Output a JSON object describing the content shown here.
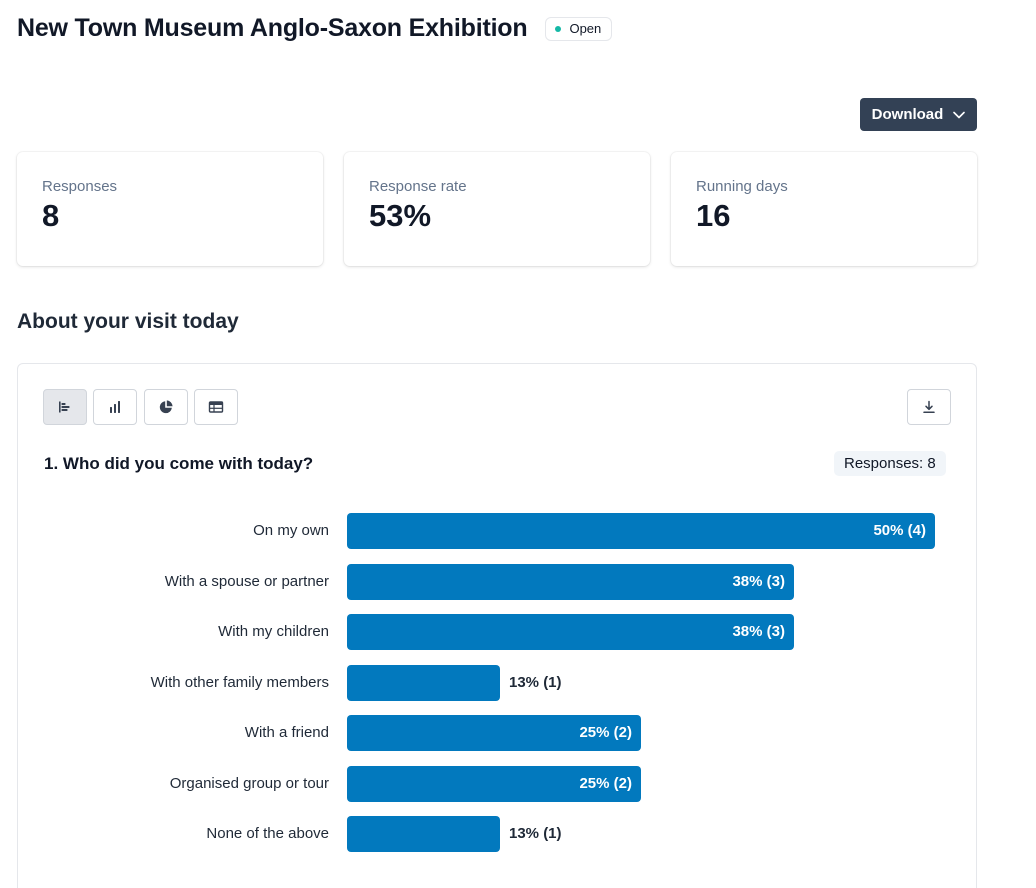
{
  "header": {
    "title": "New Town Museum Anglo-Saxon Exhibition",
    "status": "Open"
  },
  "toolbar": {
    "download_label": "Download"
  },
  "stats": [
    {
      "label": "Responses",
      "value": "8"
    },
    {
      "label": "Response rate",
      "value": "53%"
    },
    {
      "label": "Running days",
      "value": "16"
    }
  ],
  "section": {
    "title": "About your visit today"
  },
  "question": {
    "text": "1. Who did you come with today?",
    "responses_label": "Responses: 8"
  },
  "icons": {
    "view_buttons": [
      "horizontal-bar-chart-icon",
      "vertical-bar-chart-icon",
      "pie-chart-icon",
      "table-icon"
    ],
    "export": "download-icon",
    "dropdown": "chevron-down-icon"
  },
  "colors": {
    "bar": "#0279be",
    "primary_button": "#334155",
    "status_dot": "#14b8a6"
  },
  "chart_data": {
    "type": "bar",
    "orientation": "horizontal",
    "categories": [
      "On my own",
      "With a spouse or partner",
      "With my children",
      "With other family members",
      "With a friend",
      "Organised group or tour",
      "None of the above"
    ],
    "values": [
      50,
      38,
      38,
      13,
      25,
      25,
      13
    ],
    "counts": [
      4,
      3,
      3,
      1,
      2,
      2,
      1
    ],
    "value_labels": [
      "50% (4)",
      "38% (3)",
      "38% (3)",
      "13% (1)",
      "25% (2)",
      "25% (2)",
      "13% (1)"
    ],
    "xlim": [
      0,
      50
    ]
  }
}
